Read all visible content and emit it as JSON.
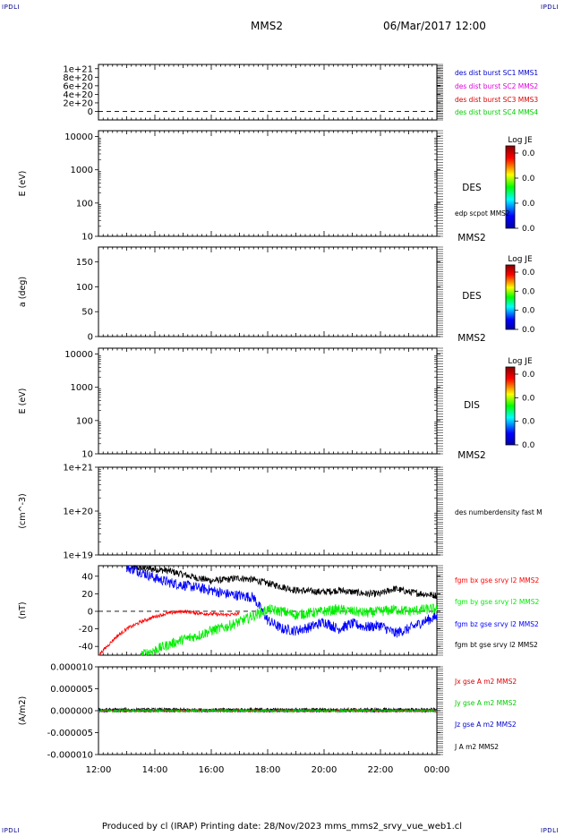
{
  "corner_tl": "IPDLI",
  "corner_tr": "IPDLI",
  "corner_bl": "IPDLI",
  "corner_br": "IPDLI",
  "header": {
    "title": "MMS2",
    "date": "06/Mar/2017 12:00"
  },
  "footer": "Produced by cl (IRAP)   Printing date: 28/Nov/2023   mms_mms2_srvy_vue_web1.cl",
  "colors": {
    "mms1": "#0000cc",
    "mms2": "#dd00dd",
    "mms3": "#dd0000",
    "mms4": "#00cc00",
    "bx": "#ff0000",
    "by": "#00ee00",
    "bz": "#0000ff",
    "bt": "#000000"
  },
  "x_ticks": [
    "12:00",
    "14:00",
    "16:00",
    "18:00",
    "20:00",
    "22:00",
    "00:00"
  ],
  "chart_data": [
    {
      "type": "line",
      "ylim": [
        -2e+20,
        1.1e+21
      ],
      "yticks": [
        "1e+21",
        "8e+20",
        "6e+20",
        "4e+20",
        "2e+20",
        "0"
      ],
      "ytick_values": [
        1e+21,
        8e+20,
        6e+20,
        4e+20,
        2e+20,
        0
      ],
      "legend": [
        {
          "text": "des dist burst SC1 MMS1",
          "color": "#0000cc"
        },
        {
          "text": "des dist burst SC2 MMS2",
          "color": "#dd00dd"
        },
        {
          "text": "des dist burst SC3 MMS3",
          "color": "#dd0000"
        },
        {
          "text": "des dist burst SC4 MMS4",
          "color": "#00cc00"
        }
      ],
      "reference_line": 0,
      "series": []
    },
    {
      "type": "heatmap",
      "ylabel": "E (eV)",
      "yscale": "log",
      "ylim": [
        10,
        15000
      ],
      "yticks": [
        "10000",
        "1000",
        "100",
        "10"
      ],
      "ytick_values": [
        10000,
        1000,
        100,
        10
      ],
      "right_label": "DES",
      "extra_label": "edp scpot MMS2",
      "spacecraft": "MMS2",
      "colorbar": {
        "title": "Log JE",
        "labels": [
          "0.0",
          "0.0",
          "0.0",
          "0.0"
        ]
      }
    },
    {
      "type": "heatmap",
      "ylabel": "a (deg)",
      "ylim": [
        0,
        180
      ],
      "yticks": [
        "150",
        "100",
        "50",
        "0"
      ],
      "ytick_values": [
        150,
        100,
        50,
        0
      ],
      "right_label": "DES",
      "spacecraft": "MMS2",
      "colorbar": {
        "title": "Log JE",
        "labels": [
          "0.0",
          "0.0",
          "0.0",
          "0.0"
        ]
      }
    },
    {
      "type": "heatmap",
      "ylabel": "E (eV)",
      "yscale": "log",
      "ylim": [
        10,
        15000
      ],
      "yticks": [
        "10000",
        "1000",
        "100",
        "10"
      ],
      "ytick_values": [
        10000,
        1000,
        100,
        10
      ],
      "right_label": "DIS",
      "spacecraft": "MMS2",
      "colorbar": {
        "title": "Log JE",
        "labels": [
          "0.0",
          "0.0",
          "0.0",
          "0.0"
        ]
      }
    },
    {
      "type": "line",
      "ylabel": "(cm^-3)",
      "yscale": "log",
      "ylim": [
        1e+19,
        1e+21
      ],
      "yticks": [
        "1e+21",
        "1e+20",
        "1e+19"
      ],
      "ytick_values": [
        1e+21,
        1e+20,
        1e+19
      ],
      "legend": [
        {
          "text": "des numberdensity fast M",
          "color": "#000000"
        }
      ],
      "series": []
    },
    {
      "type": "line",
      "ylabel": "(nT)",
      "ylim": [
        -50,
        52
      ],
      "yticks": [
        "40",
        "20",
        "0",
        "-20",
        "-40"
      ],
      "ytick_values": [
        40,
        20,
        0,
        -20,
        -40
      ],
      "reference_line": 0,
      "legend": [
        {
          "text": "fgm bx gse srvy l2 MMS2",
          "color": "#ff0000"
        },
        {
          "text": "fgm by gse srvy l2 MMS2",
          "color": "#00ee00"
        },
        {
          "text": "fgm bz gse srvy l2 MMS2",
          "color": "#0000ff"
        },
        {
          "text": "fgm bt gse srvy l2 MMS2",
          "color": "#000000"
        }
      ],
      "series": [
        {
          "name": "fgm bt gse srvy l2 MMS2",
          "color": "#000000",
          "noise": 4,
          "x": [
            13.2,
            14.0,
            14.5,
            15.0,
            15.5,
            16.0,
            16.5,
            17.0,
            17.5,
            18.0,
            18.5,
            19.0,
            19.5,
            20.0,
            20.5,
            21.0,
            21.5,
            22.0,
            22.5,
            23.0,
            23.5,
            24.0
          ],
          "y": [
            50,
            48,
            46,
            42,
            38,
            35,
            36,
            38,
            36,
            32,
            28,
            24,
            23,
            22,
            24,
            22,
            20,
            20,
            26,
            22,
            20,
            18
          ]
        },
        {
          "name": "fgm bz gse srvy l2 MMS2",
          "color": "#0000ff",
          "noise": 6,
          "x": [
            13.0,
            13.5,
            14.0,
            14.5,
            15.0,
            15.5,
            16.0,
            16.5,
            17.0,
            17.5,
            18.0,
            18.5,
            19.0,
            19.5,
            20.0,
            20.5,
            21.0,
            21.5,
            22.0,
            22.5,
            23.0,
            23.5,
            24.0
          ],
          "y": [
            50,
            45,
            38,
            33,
            30,
            27,
            24,
            20,
            18,
            16,
            -10,
            -20,
            -22,
            -18,
            -12,
            -20,
            -14,
            -18,
            -16,
            -25,
            -20,
            -12,
            -6
          ]
        },
        {
          "name": "fgm bx gse srvy l2 MMS2",
          "color": "#ff0000",
          "noise": 2,
          "x": [
            12.0,
            12.3,
            12.6,
            13.0,
            13.5,
            14.0,
            14.5,
            15.0,
            15.5,
            16.0,
            16.5,
            17.0
          ],
          "y": [
            -50,
            -40,
            -30,
            -20,
            -12,
            -6,
            -2,
            0,
            -2,
            -3,
            -4,
            -3
          ]
        },
        {
          "name": "fgm by gse srvy l2 MMS2",
          "color": "#00ee00",
          "noise": 6,
          "x": [
            13.5,
            14.0,
            14.5,
            15.0,
            15.5,
            16.0,
            16.5,
            17.0,
            17.5,
            18.0,
            18.5,
            19.0,
            19.5,
            20.0,
            20.5,
            21.0,
            21.5,
            22.0,
            22.5,
            23.0,
            23.5,
            24.0
          ],
          "y": [
            -50,
            -44,
            -38,
            -32,
            -28,
            -22,
            -18,
            -12,
            -5,
            2,
            0,
            -4,
            -2,
            0,
            2,
            0,
            -2,
            0,
            2,
            0,
            2,
            3
          ]
        }
      ]
    },
    {
      "type": "line",
      "ylabel": "(A/m2)",
      "ylim": [
        -1e-05,
        1e-05
      ],
      "yticks": [
        "0.000010",
        "0.000005",
        "0.000000",
        "-0.000005",
        "-0.000010"
      ],
      "ytick_values": [
        1e-05,
        5e-06,
        0,
        -5e-06,
        -1e-05
      ],
      "legend": [
        {
          "text": "Jx gse A m2 MMS2",
          "color": "#dd0000"
        },
        {
          "text": "Jy gse A m2 MMS2",
          "color": "#00cc00"
        },
        {
          "text": "Jz gse A m2 MMS2",
          "color": "#0000cc"
        },
        {
          "text": "J A m2 MMS2",
          "color": "#000000"
        }
      ],
      "series": [
        {
          "name": "J A m2 MMS2",
          "color": "#000000",
          "noise": 4e-07,
          "x": [
            12,
            24
          ],
          "y": [
            2e-07,
            2e-07
          ]
        },
        {
          "name": "Jz gse A m2 MMS2",
          "color": "#0000cc",
          "noise": 3e-07,
          "x": [
            12,
            24
          ],
          "y": [
            0,
            0
          ]
        },
        {
          "name": "Jx gse A m2 MMS2",
          "color": "#dd0000",
          "noise": 3e-07,
          "x": [
            12,
            24
          ],
          "y": [
            0,
            0
          ]
        },
        {
          "name": "Jy gse A m2 MMS2",
          "color": "#00cc00",
          "noise": 3e-07,
          "x": [
            12,
            24
          ],
          "y": [
            0,
            0
          ]
        }
      ]
    }
  ]
}
